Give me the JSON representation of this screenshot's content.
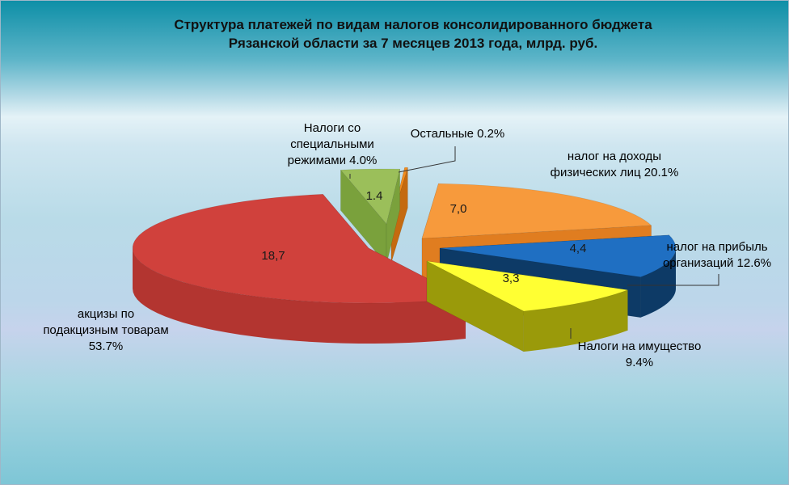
{
  "chart_data": {
    "type": "pie",
    "title": "Структура платежей по видам налогов консолидированного бюджета Рязанской области за 7 месяцев  2013 года, млрд. руб.",
    "title_lines": [
      "Структура платежей по видам налогов консолидированного бюджета",
      "Рязанской области за 7 месяцев  2013 года, млрд. руб."
    ],
    "slices": [
      {
        "key": "ndfl",
        "label_lines": [
          "налог на доходы",
          "физических лиц 20.1%"
        ],
        "value_label": "7,0",
        "value": 7.0,
        "percent": 20.1,
        "color": "#f79a3c"
      },
      {
        "key": "profit",
        "label_lines": [
          "налог на прибыль",
          "организаций 12.6%"
        ],
        "value_label": "4,4",
        "value": 4.4,
        "percent": 12.6,
        "color": "#1f6fc2"
      },
      {
        "key": "prop",
        "label_lines": [
          "Налоги на имущество",
          "9.4%"
        ],
        "value_label": "3,3",
        "value": 3.3,
        "percent": 9.4,
        "color": "#ffff33"
      },
      {
        "key": "excise",
        "label_lines": [
          "акцизы по",
          "подакцизным товарам",
          "53.7%"
        ],
        "value_label": "18,7",
        "value": 18.7,
        "percent": 53.7,
        "color": "#d0413c"
      },
      {
        "key": "spec",
        "label_lines": [
          "Налоги со",
          "специальными",
          "режимами 4.0%"
        ],
        "value_label": "1.4",
        "value": 1.4,
        "percent": 4.0,
        "color": "#9bbf5a"
      },
      {
        "key": "other",
        "label_lines": [
          "Остальные 0.2%"
        ],
        "value_label": "",
        "value": 0.07,
        "percent": 0.2,
        "color": "#f28c1e"
      }
    ],
    "legend": "none",
    "data_labels": "on slices",
    "three_d": true,
    "exploded": true
  }
}
